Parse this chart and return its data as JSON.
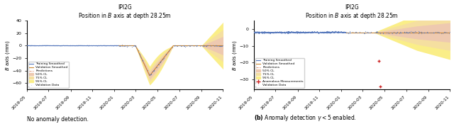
{
  "title": "IPI2G",
  "subtitle": "Position in $B$ axis at depth 28.25m",
  "ylabel": "$B$ axis (mm)",
  "ylim_left": [
    -70,
    40
  ],
  "ylim_right": [
    -36,
    5
  ],
  "yticks_left": [
    40,
    20,
    0,
    -20,
    -40,
    -60
  ],
  "yticks_right": [
    0,
    -10,
    -20,
    -30
  ],
  "colors": {
    "training": "#5577BB",
    "validation_smoothed": "#CC8833",
    "predictions": "#DD8866",
    "ci50": "#EEC9B0",
    "ci75": "#F5DFA0",
    "ci95": "#FAEE88",
    "validation_data_color": "#5577BB",
    "anomaly": "#CC2222"
  },
  "train_start": "2019-05-01",
  "train_end": "2020-01-15",
  "val_start": "2020-01-15",
  "val_end": "2020-11-01",
  "full_start": "2019-05-01",
  "full_end": "2020-11-01",
  "caption_left": "No anomaly detection.",
  "caption_right": "Anomaly detection $\\gamma < 5$ enabled."
}
